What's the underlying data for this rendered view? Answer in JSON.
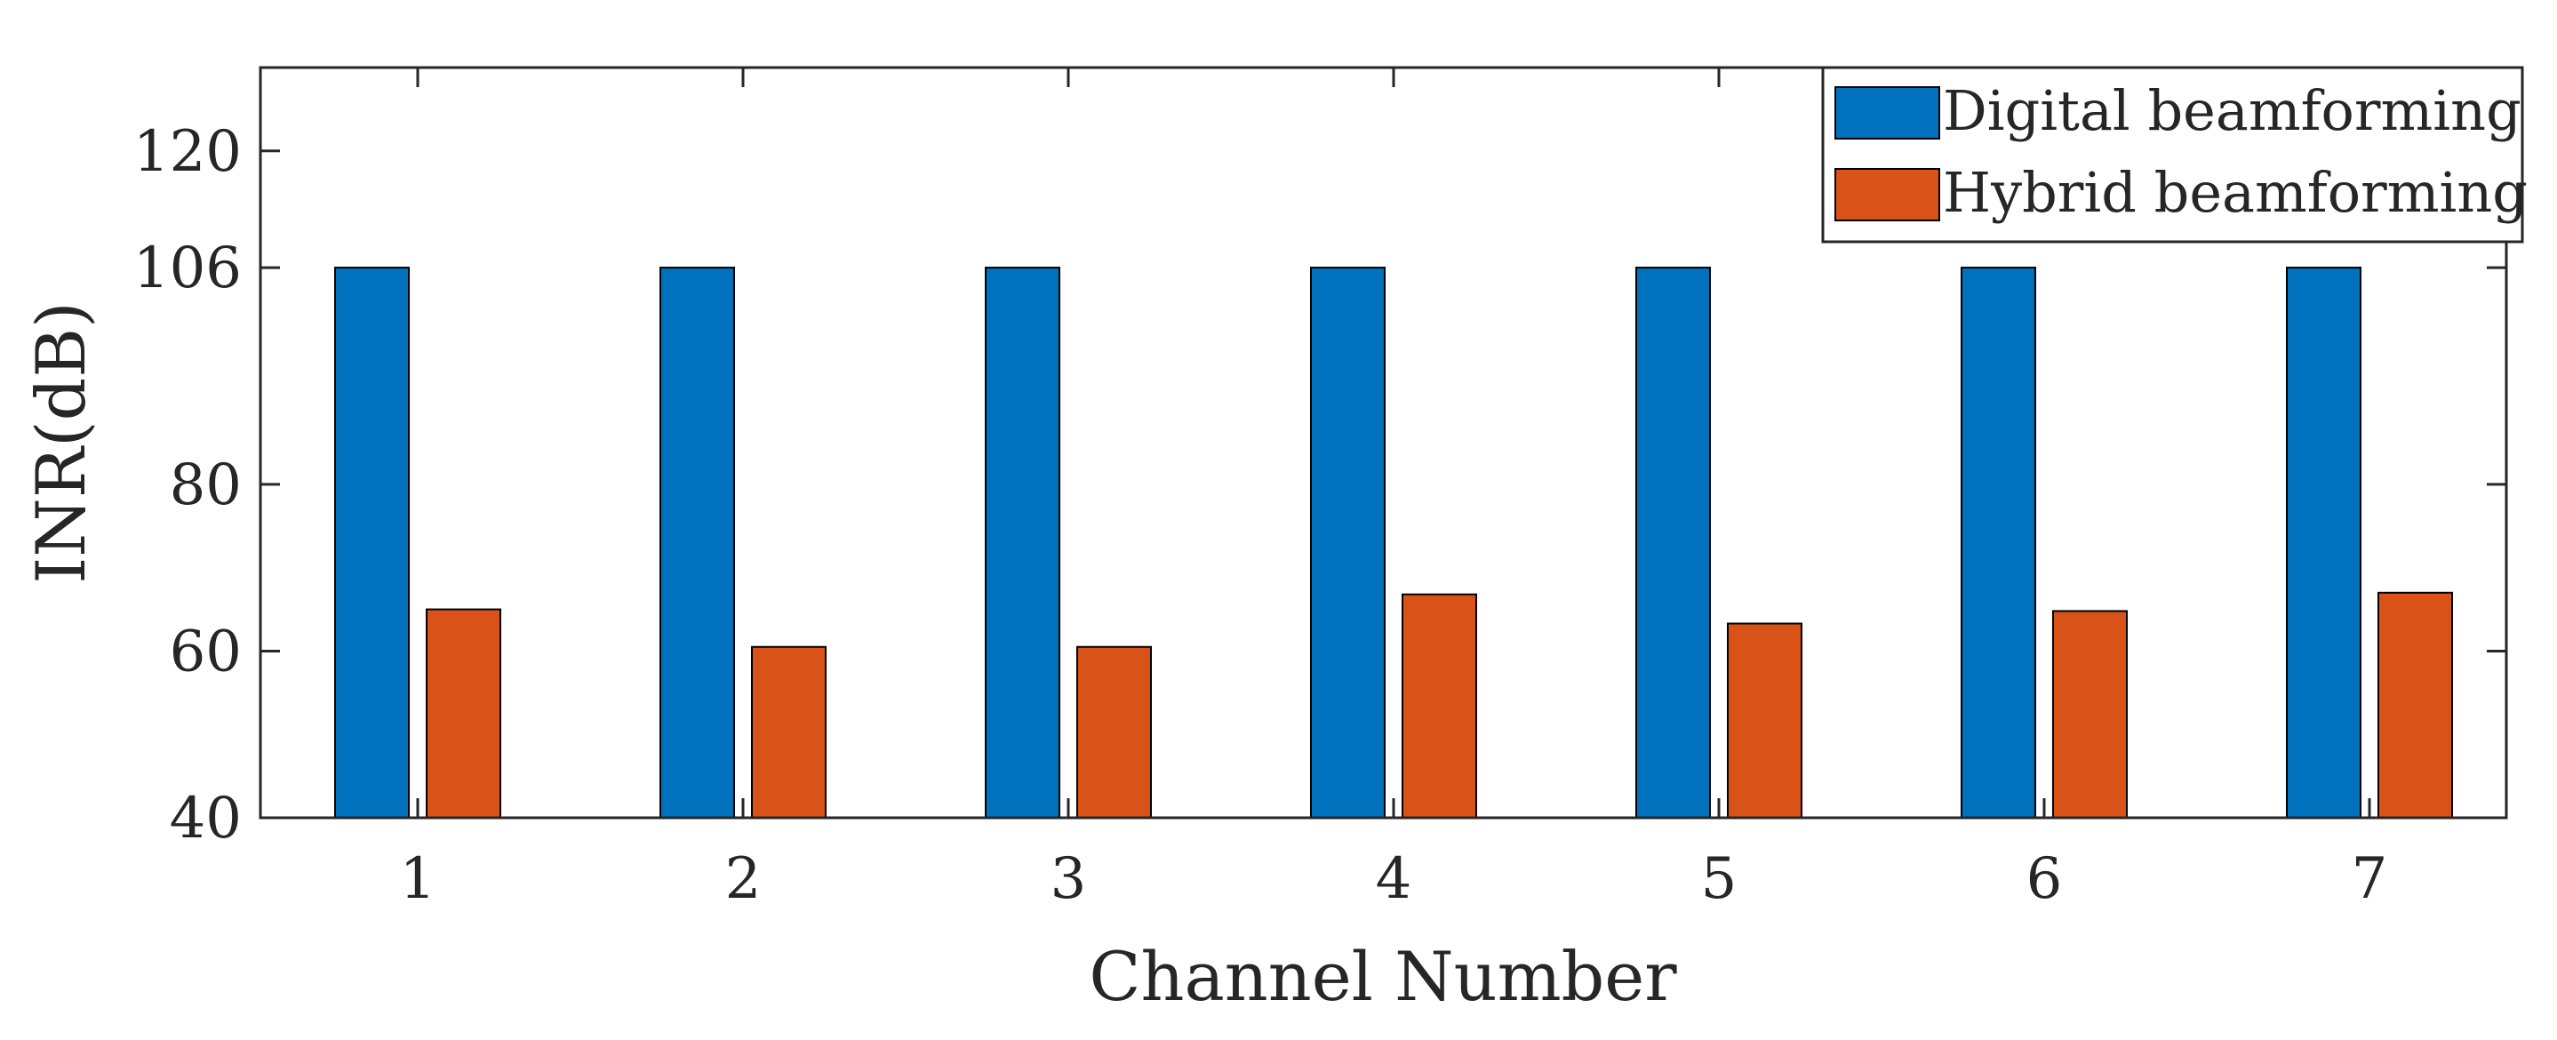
{
  "chart_data": {
    "type": "bar",
    "title": "",
    "xlabel": "Channel Number",
    "ylabel": "INR(dB)",
    "categories": [
      "1",
      "2",
      "3",
      "4",
      "5",
      "6",
      "7"
    ],
    "ylim": [
      40,
      130
    ],
    "yticks": [
      40,
      60,
      80,
      106,
      120
    ],
    "series": [
      {
        "name": "Digital beamforming",
        "color": "#0072BD",
        "values": [
          106,
          106,
          106,
          106,
          106,
          106,
          106
        ]
      },
      {
        "name": "Hybrid beamforming",
        "color": "#D95319",
        "values": [
          65,
          60.5,
          60.5,
          66.8,
          63.3,
          64.8,
          67
        ]
      }
    ],
    "grid": false,
    "legend_position": "top-right"
  }
}
